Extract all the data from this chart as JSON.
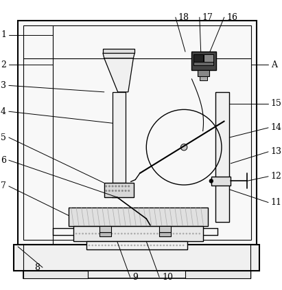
{
  "bg_color": "#ffffff",
  "lc": "#000000",
  "gray1": "#f0f0f0",
  "gray2": "#e0e0e0",
  "gray3": "#d0d0d0",
  "gray4": "#aaaaaa",
  "dark": "#333333",
  "fig_w": 4.11,
  "fig_h": 4.22,
  "dpi": 100
}
